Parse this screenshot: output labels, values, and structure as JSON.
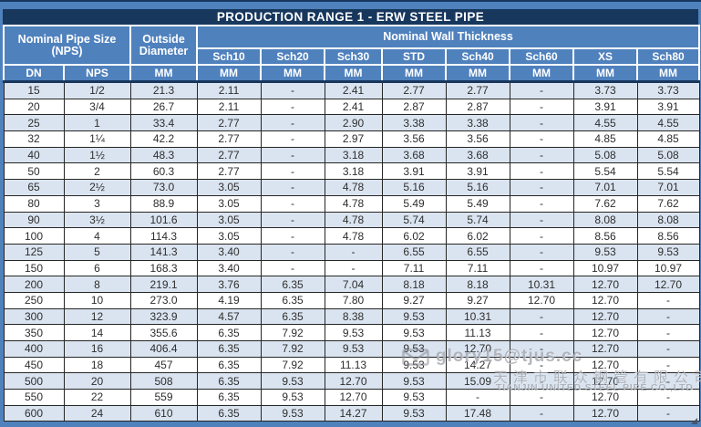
{
  "title": "PRODUCTION RANGE 1 - ERW STEEL PIPE",
  "table": {
    "group_headers": {
      "nps": "Nominal Pipe Size (NPS)",
      "od": "Outside Diameter",
      "wall": "Nominal Wall Thickness"
    },
    "sch_headers": [
      "Sch10",
      "Sch20",
      "Sch30",
      "STD",
      "Sch40",
      "Sch60",
      "XS",
      "Sch80"
    ],
    "unit_row": [
      "DN",
      "NPS",
      "MM",
      "MM",
      "MM",
      "MM",
      "MM",
      "MM",
      "MM",
      "MM",
      "MM"
    ],
    "rows": [
      [
        "15",
        "1/2",
        "21.3",
        "2.11",
        "-",
        "2.41",
        "2.77",
        "2.77",
        "-",
        "3.73",
        "3.73"
      ],
      [
        "20",
        "3/4",
        "26.7",
        "2.11",
        "-",
        "2.41",
        "2.87",
        "2.87",
        "-",
        "3.91",
        "3.91"
      ],
      [
        "25",
        "1",
        "33.4",
        "2.77",
        "-",
        "2.90",
        "3.38",
        "3.38",
        "-",
        "4.55",
        "4.55"
      ],
      [
        "32",
        "1¼",
        "42.2",
        "2.77",
        "-",
        "2.97",
        "3.56",
        "3.56",
        "-",
        "4.85",
        "4.85"
      ],
      [
        "40",
        "1½",
        "48.3",
        "2.77",
        "-",
        "3.18",
        "3.68",
        "3.68",
        "-",
        "5.08",
        "5.08"
      ],
      [
        "50",
        "2",
        "60.3",
        "2.77",
        "-",
        "3.18",
        "3.91",
        "3.91",
        "-",
        "5.54",
        "5.54"
      ],
      [
        "65",
        "2½",
        "73.0",
        "3.05",
        "-",
        "4.78",
        "5.16",
        "5.16",
        "-",
        "7.01",
        "7.01"
      ],
      [
        "80",
        "3",
        "88.9",
        "3.05",
        "-",
        "4.78",
        "5.49",
        "5.49",
        "-",
        "7.62",
        "7.62"
      ],
      [
        "90",
        "3½",
        "101.6",
        "3.05",
        "-",
        "4.78",
        "5.74",
        "5.74",
        "-",
        "8.08",
        "8.08"
      ],
      [
        "100",
        "4",
        "114.3",
        "3.05",
        "-",
        "4.78",
        "6.02",
        "6.02",
        "-",
        "8.56",
        "8.56"
      ],
      [
        "125",
        "5",
        "141.3",
        "3.40",
        "-",
        "-",
        "6.55",
        "6.55",
        "-",
        "9.53",
        "9.53"
      ],
      [
        "150",
        "6",
        "168.3",
        "3.40",
        "-",
        "-",
        "7.11",
        "7.11",
        "-",
        "10.97",
        "10.97"
      ],
      [
        "200",
        "8",
        "219.1",
        "3.76",
        "6.35",
        "7.04",
        "8.18",
        "8.18",
        "10.31",
        "12.70",
        "12.70"
      ],
      [
        "250",
        "10",
        "273.0",
        "4.19",
        "6.35",
        "7.80",
        "9.27",
        "9.27",
        "12.70",
        "12.70",
        "-"
      ],
      [
        "300",
        "12",
        "323.9",
        "4.57",
        "6.35",
        "8.38",
        "9.53",
        "10.31",
        "-",
        "12.70",
        "-"
      ],
      [
        "350",
        "14",
        "355.6",
        "6.35",
        "7.92",
        "9.53",
        "9.53",
        "11.13",
        "-",
        "12.70",
        "-"
      ],
      [
        "400",
        "16",
        "406.4",
        "6.35",
        "7.92",
        "9.53",
        "9.53",
        "12.70",
        "-",
        "12.70",
        "-"
      ],
      [
        "450",
        "18",
        "457",
        "6.35",
        "7.92",
        "11.13",
        "9.53",
        "14.27",
        "-",
        "12.70",
        "-"
      ],
      [
        "500",
        "20",
        "508",
        "6.35",
        "9.53",
        "12.70",
        "9.53",
        "15.09",
        "-",
        "12.70",
        "-"
      ],
      [
        "550",
        "22",
        "559",
        "6.35",
        "9.53",
        "12.70",
        "9.53",
        "-",
        "-",
        "12.70",
        "-"
      ],
      [
        "600",
        "24",
        "610",
        "6.35",
        "9.53",
        "14.27",
        "9.53",
        "17.48",
        "-",
        "12.70",
        "-"
      ]
    ]
  },
  "watermark": {
    "email": "glory15@tjus.cc",
    "company_cn": "天津市联众钢管有限公司",
    "company_en": "TIANJIN UNITED STEEL PIPE CO.,LTD",
    "envelope_icon": "envelope-icon"
  },
  "colors": {
    "title_bg": "#17375D",
    "header_bg": "#4F81BD",
    "row_alt_bg": "#DAE4F0",
    "row_bg": "#FFFFFF",
    "header_text": "#FFFFFF",
    "body_text": "#2E2E2E"
  }
}
